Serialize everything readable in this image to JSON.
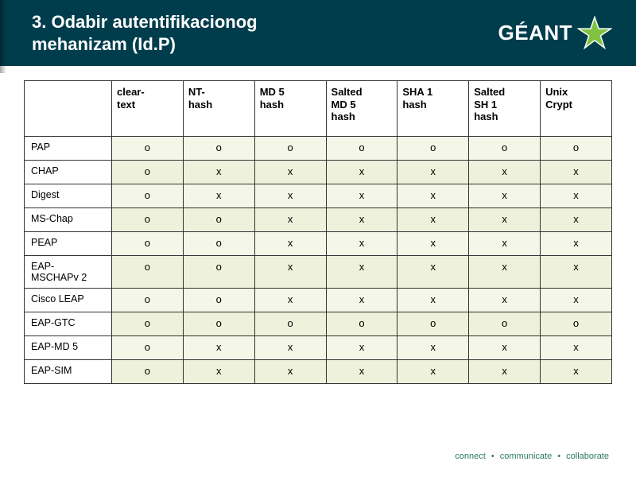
{
  "header": {
    "title_line1": "3. Odabir autentifikacionog",
    "title_line2": "mehanizam (Id.P)",
    "logo_text": "GÉANT"
  },
  "table": {
    "columns": [
      "clear-text",
      "NT-hash",
      "MD 5 hash",
      "Salted MD 5 hash",
      "SHA 1 hash",
      "Salted SH 1 hash",
      "Unix Crypt"
    ],
    "column_wrapped": [
      [
        "clear-",
        "text"
      ],
      [
        "NT-",
        "hash"
      ],
      [
        "MD 5",
        "hash"
      ],
      [
        "Salted",
        "MD 5",
        "hash"
      ],
      [
        "SHA 1",
        "hash"
      ],
      [
        "Salted",
        "SH 1",
        "hash"
      ],
      [
        "Unix",
        "Crypt"
      ]
    ],
    "rows": [
      {
        "label": "PAP",
        "values": [
          "o",
          "o",
          "o",
          "o",
          "o",
          "o",
          "o"
        ]
      },
      {
        "label": "CHAP",
        "values": [
          "o",
          "x",
          "x",
          "x",
          "x",
          "x",
          "x"
        ]
      },
      {
        "label": "Digest",
        "values": [
          "o",
          "x",
          "x",
          "x",
          "x",
          "x",
          "x"
        ]
      },
      {
        "label": "MS-Chap",
        "values": [
          "o",
          "o",
          "x",
          "x",
          "x",
          "x",
          "x"
        ]
      },
      {
        "label": "PEAP",
        "values": [
          "o",
          "o",
          "x",
          "x",
          "x",
          "x",
          "x"
        ]
      },
      {
        "label": "EAP-MSCHAPv 2",
        "values": [
          "o",
          "o",
          "x",
          "x",
          "x",
          "x",
          "x"
        ]
      },
      {
        "label": "Cisco LEAP",
        "values": [
          "o",
          "o",
          "x",
          "x",
          "x",
          "x",
          "x"
        ]
      },
      {
        "label": "EAP-GTC",
        "values": [
          "o",
          "o",
          "o",
          "o",
          "o",
          "o",
          "o"
        ]
      },
      {
        "label": "EAP-MD 5",
        "values": [
          "o",
          "x",
          "x",
          "x",
          "x",
          "x",
          "x"
        ]
      },
      {
        "label": "EAP-SIM",
        "values": [
          "o",
          "x",
          "x",
          "x",
          "x",
          "x",
          "x"
        ]
      }
    ]
  },
  "footer": {
    "w1": "connect",
    "w2": "communicate",
    "w3": "collaborate"
  },
  "colors": {
    "header_bg": "#003d4c",
    "row_odd": "#f4f6e8",
    "row_even": "#eef1db",
    "footer_text": "#2a7a63",
    "star_fill": "#7fc241"
  }
}
